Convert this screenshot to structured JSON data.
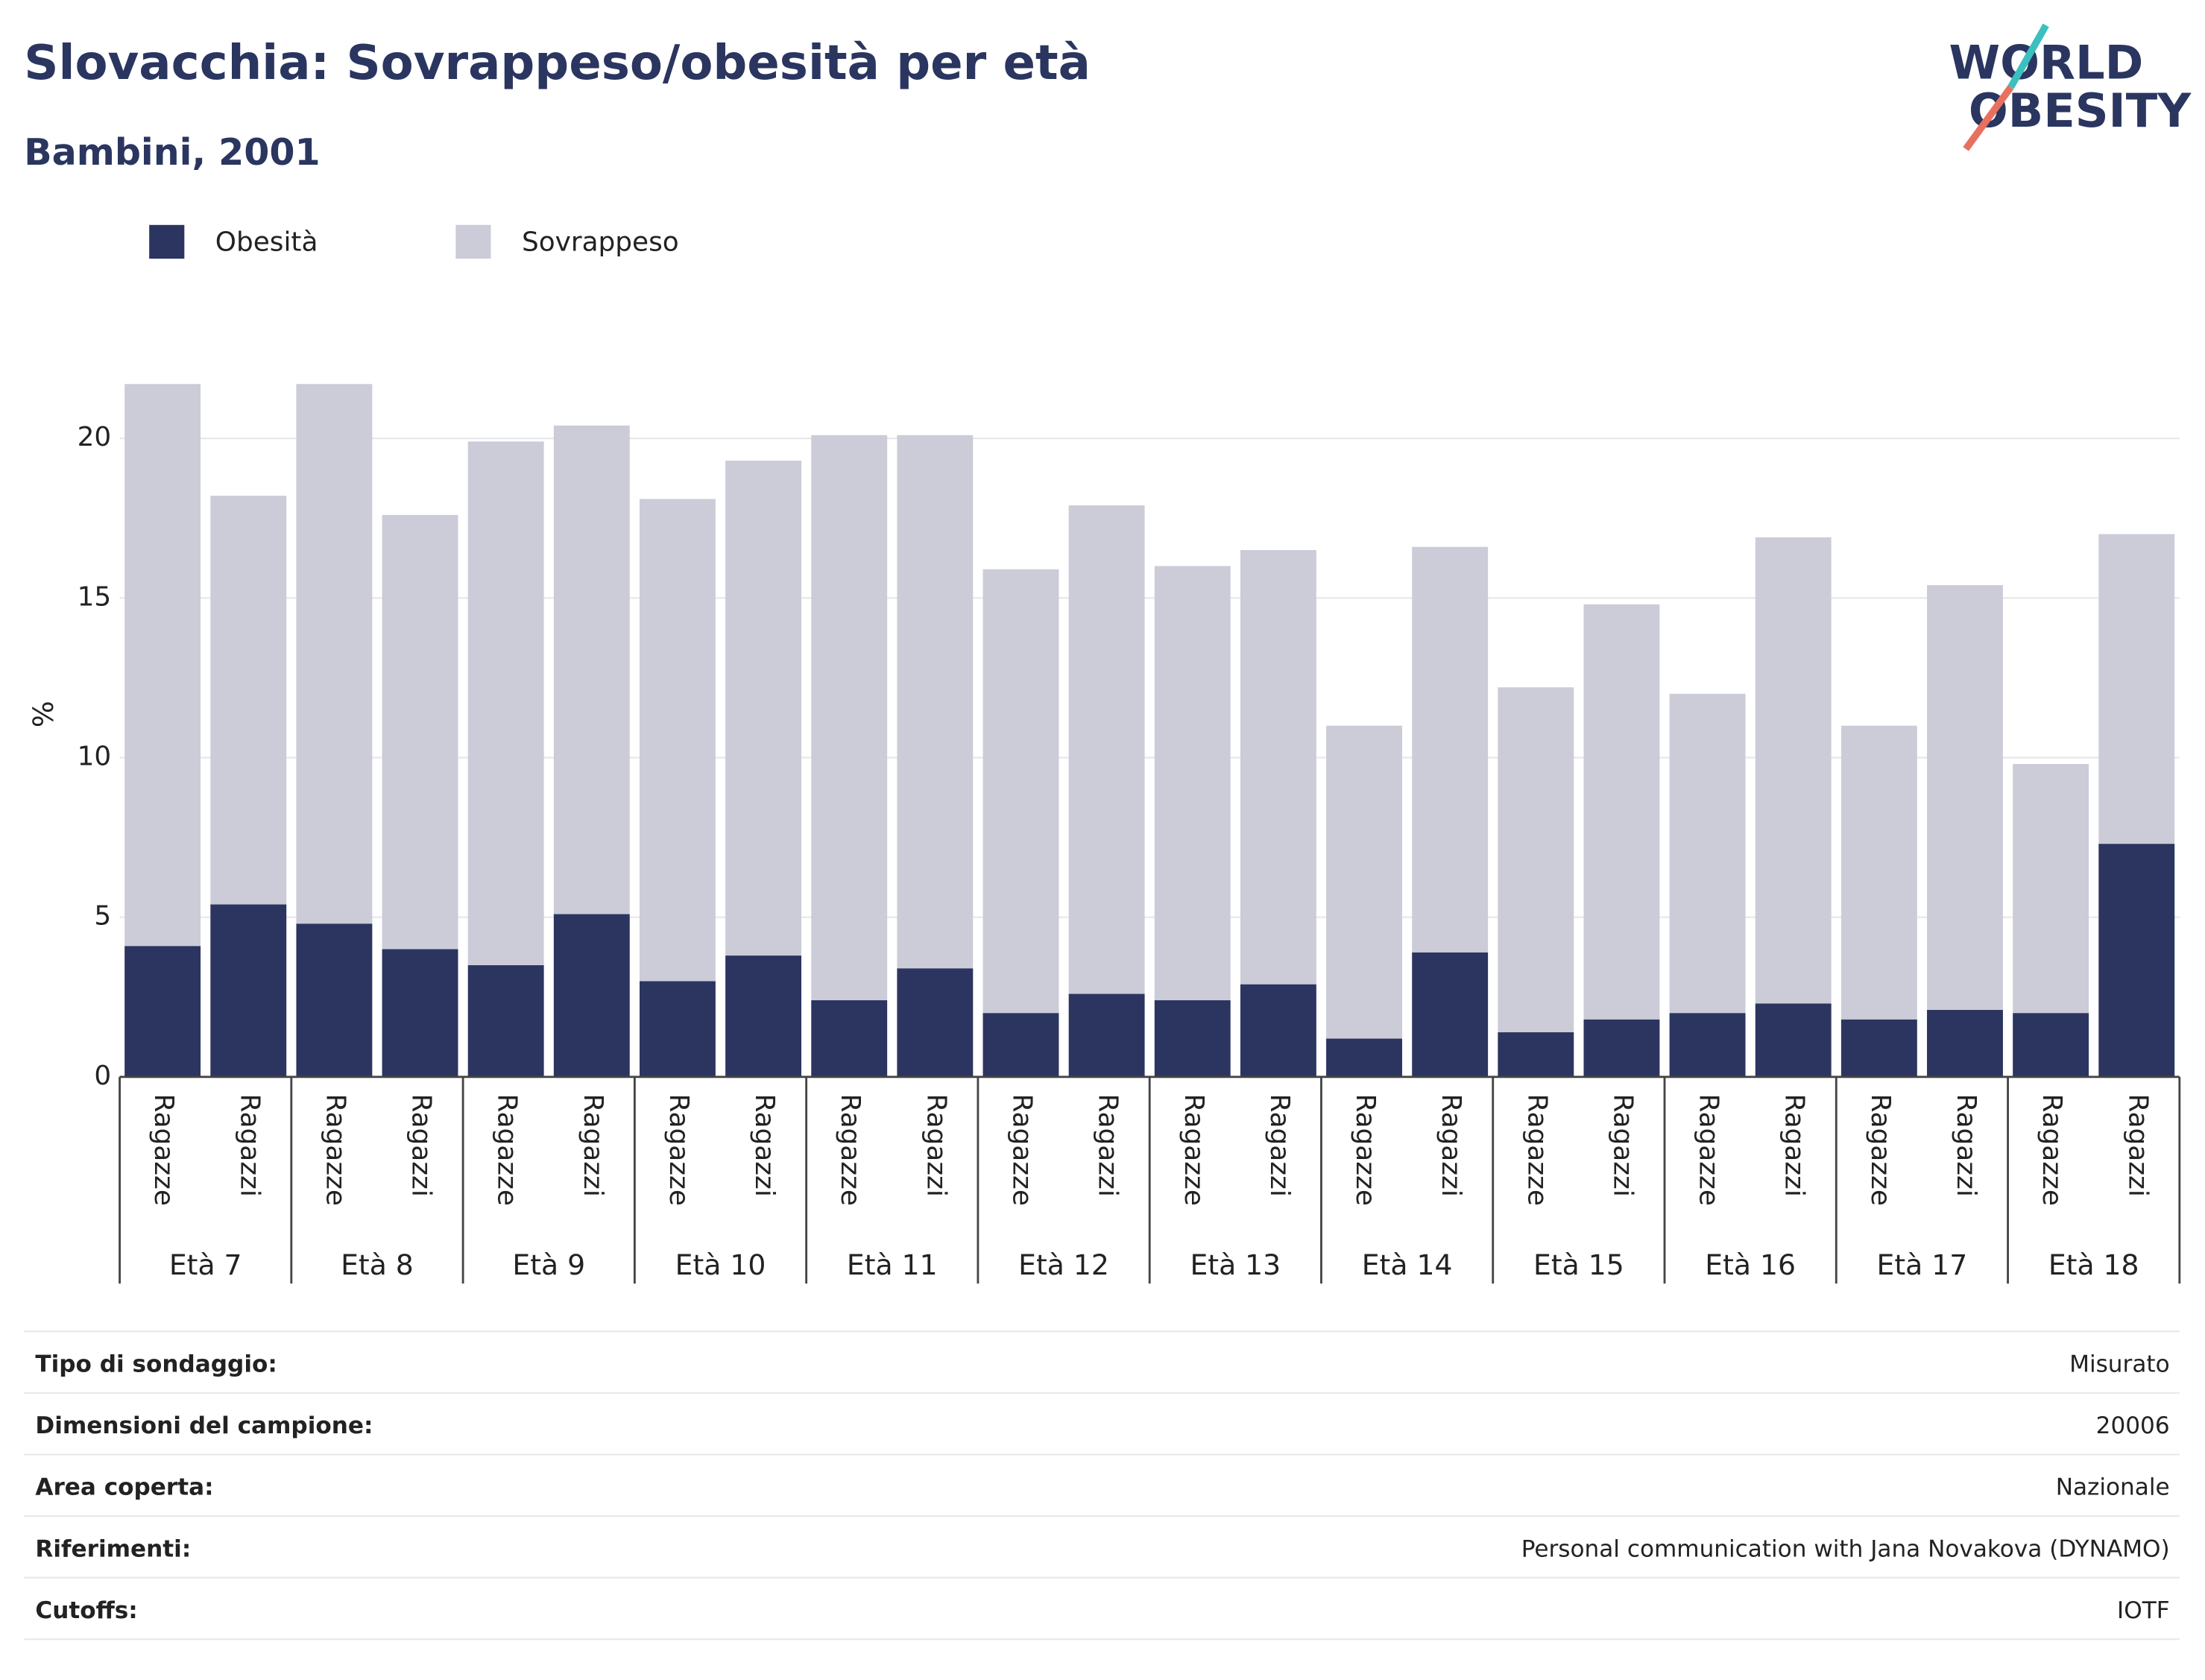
{
  "chart_data": {
    "type": "stacked_bar",
    "title": "Slovacchia: Sovrappeso/obesità per età",
    "subtitle": "Bambini, 2001",
    "y_label": "%",
    "logo": [
      "WORLD",
      "OBESITY"
    ],
    "groups": [
      "Età 7",
      "Età 8",
      "Età 9",
      "Età 10",
      "Età 11",
      "Età 12",
      "Età 13",
      "Età 14",
      "Età 15",
      "Età 16",
      "Età 17",
      "Età 18"
    ],
    "categories": [
      "Ragazze",
      "Ragazzi",
      "Ragazze",
      "Ragazzi",
      "Ragazze",
      "Ragazzi",
      "Ragazze",
      "Ragazzi",
      "Ragazze",
      "Ragazzi",
      "Ragazze",
      "Ragazzi",
      "Ragazze",
      "Ragazzi",
      "Ragazze",
      "Ragazzi",
      "Ragazze",
      "Ragazzi",
      "Ragazze",
      "Ragazzi",
      "Ragazze",
      "Ragazzi",
      "Ragazze",
      "Ragazzi"
    ],
    "series": [
      {
        "name": "Obesità",
        "color": "#2b3560",
        "values": [
          4.1,
          5.4,
          4.8,
          4.0,
          3.5,
          5.1,
          3.0,
          3.8,
          2.4,
          3.4,
          2.0,
          2.6,
          2.4,
          2.9,
          1.2,
          3.9,
          1.4,
          1.8,
          2.0,
          2.3,
          1.8,
          2.1,
          2.0,
          7.3
        ]
      },
      {
        "name": "Sovrappeso",
        "color": "#cbccd8",
        "values": [
          17.6,
          12.8,
          16.9,
          13.6,
          16.4,
          15.3,
          15.1,
          15.5,
          17.7,
          16.7,
          13.9,
          15.3,
          13.6,
          13.6,
          9.8,
          12.7,
          10.8,
          13.0,
          10.0,
          14.6,
          9.2,
          13.3,
          7.8,
          9.7
        ]
      }
    ],
    "ylim": [
      0,
      22.5
    ],
    "yticks": [
      0,
      5,
      10,
      15,
      20
    ],
    "grid": true,
    "legend": "top-left"
  },
  "table": {
    "rows": [
      [
        "Tipo di sondaggio:",
        "Misurato"
      ],
      [
        "Dimensioni del campione:",
        "20006"
      ],
      [
        "Area coperta:",
        "Nazionale"
      ],
      [
        "Riferimenti:",
        "Personal communication with Jana Novakova (DYNAMO)"
      ],
      [
        "Cutoffs:",
        "IOTF"
      ]
    ]
  }
}
